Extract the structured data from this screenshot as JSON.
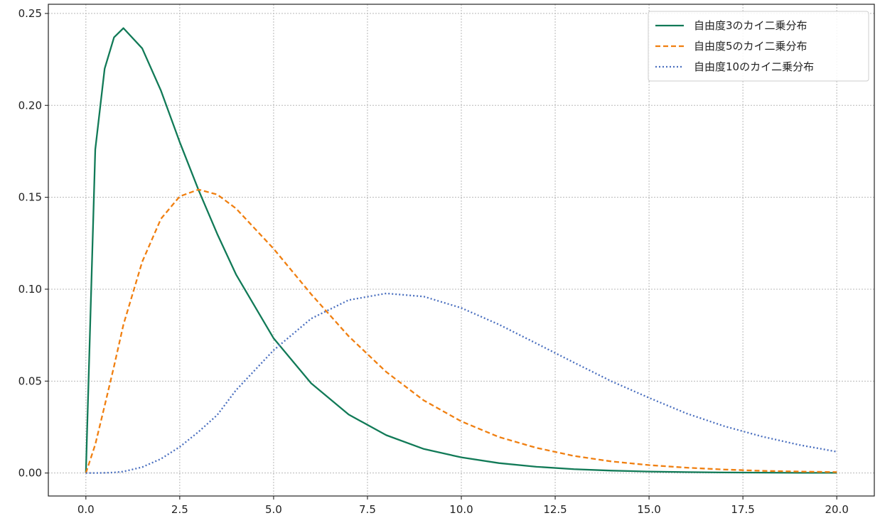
{
  "chart_data": {
    "type": "line",
    "title": "",
    "xlabel": "",
    "ylabel": "",
    "xlim": [
      -1,
      21
    ],
    "ylim": [
      -0.0125,
      0.255
    ],
    "grid": true,
    "legend_position": "top-right",
    "x_ticks": [
      0,
      2.5,
      5,
      7.5,
      10,
      12.5,
      15,
      17.5,
      20
    ],
    "x_tick_labels": [
      "0.0",
      "2.5",
      "5.0",
      "7.5",
      "10.0",
      "12.5",
      "15.0",
      "17.5",
      "20.0"
    ],
    "y_ticks": [
      0,
      0.05,
      0.1,
      0.15,
      0.2,
      0.25
    ],
    "y_tick_labels": [
      "0.00",
      "0.05",
      "0.10",
      "0.15",
      "0.20",
      "0.25"
    ],
    "x": [
      0,
      0.25,
      0.5,
      0.75,
      1,
      1.5,
      2,
      2.5,
      3,
      3.5,
      4,
      5,
      6,
      7,
      8,
      9,
      10,
      11,
      12,
      13,
      14,
      15,
      16,
      17,
      18,
      19,
      20
    ],
    "series": [
      {
        "name": "自由度3のカイ二乗分布",
        "color": "#117a57",
        "dash": "solid",
        "values": [
          0,
          0.176,
          0.22,
          0.237,
          0.242,
          0.231,
          0.208,
          0.18,
          0.154,
          0.13,
          0.108,
          0.0733,
          0.0488,
          0.0318,
          0.0206,
          0.0131,
          0.0085,
          0.0054,
          0.0034,
          0.0021,
          0.0013,
          0.0008,
          0.0005,
          0.0003,
          0.0002,
          0.0001,
          0.0001
        ]
      },
      {
        "name": "自由度5のカイ二乗分布",
        "color": "#f07f10",
        "dash": "dashed",
        "values": [
          0,
          0.0155,
          0.0366,
          0.0581,
          0.0807,
          0.1149,
          0.1383,
          0.1505,
          0.1542,
          0.1515,
          0.1439,
          0.122,
          0.0973,
          0.0744,
          0.055,
          0.0395,
          0.0281,
          0.0196,
          0.0137,
          0.0093,
          0.0063,
          0.0043,
          0.0029,
          0.0019,
          0.0012,
          0.0008,
          0.0005
        ]
      },
      {
        "name": "自由度10のカイ二乗分布",
        "color": "#4a6fbf",
        "dash": "dotted",
        "values": [
          0,
          0.0,
          0.0001,
          0.0003,
          0.0008,
          0.0032,
          0.0077,
          0.0142,
          0.0224,
          0.0316,
          0.0451,
          0.0668,
          0.084,
          0.0941,
          0.0977,
          0.096,
          0.0898,
          0.0808,
          0.0705,
          0.0601,
          0.0499,
          0.0409,
          0.0324,
          0.0255,
          0.0199,
          0.0153,
          0.0116
        ]
      }
    ]
  }
}
